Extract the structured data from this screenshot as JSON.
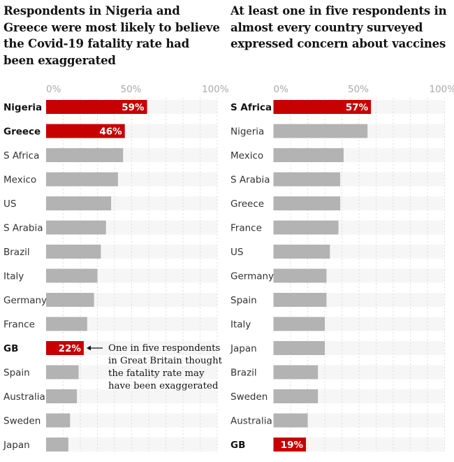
{
  "colors": {
    "highlight": "#c70000",
    "bar": "#b3b3b3",
    "track": "#f6f6f6",
    "grid": "#dcdcdc"
  },
  "chart_data": [
    {
      "type": "bar",
      "orientation": "horizontal",
      "title": "Respondents in Nigeria and Greece were most likely to believe the Covid-19 fatality rate had been exaggerated",
      "xlim": [
        0,
        100
      ],
      "ticks": [
        "0%",
        "50%",
        "100%"
      ],
      "grid": true,
      "categories": [
        "Nigeria",
        "Greece",
        "S Africa",
        "Mexico",
        "US",
        "S Arabia",
        "Brazil",
        "Italy",
        "Germany",
        "France",
        "GB",
        "Spain",
        "Australia",
        "Sweden",
        "Japan"
      ],
      "values": [
        59,
        46,
        45,
        42,
        38,
        35,
        32,
        30,
        28,
        24,
        22,
        19,
        18,
        14,
        13
      ],
      "highlighted": [
        "Nigeria",
        "Greece",
        "GB"
      ],
      "data_labels": {
        "Nigeria": "59%",
        "Greece": "46%",
        "GB": "22%"
      },
      "annotation": {
        "target": "GB",
        "text": "One in five respondents in Great Britain thought the fatality rate may have been exaggerated"
      }
    },
    {
      "type": "bar",
      "orientation": "horizontal",
      "title": "At least one in five respondents in almost every country surveyed expressed concern about vaccines",
      "xlim": [
        0,
        100
      ],
      "ticks": [
        "0%",
        "50%",
        "100%"
      ],
      "grid": true,
      "categories": [
        "S Africa",
        "Nigeria",
        "Mexico",
        "S Arabia",
        "Greece",
        "France",
        "US",
        "Germany",
        "Spain",
        "Italy",
        "Japan",
        "Brazil",
        "Sweden",
        "Australia",
        "GB"
      ],
      "values": [
        57,
        55,
        41,
        39,
        39,
        38,
        33,
        31,
        31,
        30,
        30,
        26,
        26,
        20,
        19
      ],
      "highlighted": [
        "S Africa",
        "GB"
      ],
      "data_labels": {
        "S Africa": "57%",
        "GB": "19%"
      }
    }
  ]
}
